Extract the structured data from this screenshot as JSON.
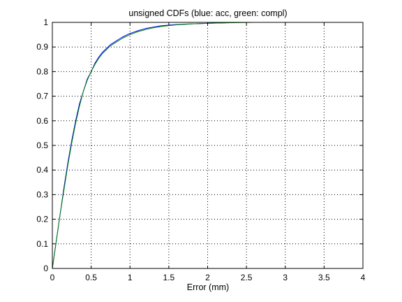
{
  "chart_data": {
    "type": "line",
    "title": "unsigned CDFs (blue: acc, green: compl)",
    "xlabel": "Error (mm)",
    "ylabel": "",
    "xlim": [
      0,
      4
    ],
    "ylim": [
      0,
      1
    ],
    "xticks": [
      "0",
      "0.5",
      "1",
      "1.5",
      "2",
      "2.5",
      "3",
      "3.5",
      "4"
    ],
    "yticks": [
      "0",
      "0.1",
      "0.2",
      "0.3",
      "0.4",
      "0.5",
      "0.6",
      "0.7",
      "0.8",
      "0.9",
      "1"
    ],
    "grid": true,
    "legend": "none",
    "colors": {
      "acc": "#0000ff",
      "compl": "#008000",
      "grid": "#000000",
      "axes": "#000000"
    },
    "series": [
      {
        "color": "#0000ff",
        "x": [
          0,
          0.05,
          0.1,
          0.15,
          0.2,
          0.25,
          0.3,
          0.35,
          0.4,
          0.45,
          0.5,
          0.55,
          0.6,
          0.65,
          0.7,
          0.75,
          0.8,
          0.9,
          1.0,
          1.1,
          1.2,
          1.3,
          1.4,
          1.5,
          1.6,
          1.7,
          1.8,
          1.9,
          2.0,
          2.1,
          2.2,
          2.3,
          2.38
        ],
        "y": [
          0,
          0.11,
          0.22,
          0.33,
          0.43,
          0.52,
          0.6,
          0.67,
          0.72,
          0.77,
          0.8,
          0.835,
          0.86,
          0.88,
          0.895,
          0.91,
          0.92,
          0.94,
          0.955,
          0.966,
          0.975,
          0.981,
          0.986,
          0.989,
          0.991,
          0.993,
          0.994,
          0.995,
          0.996,
          0.997,
          0.998,
          0.999,
          1.0
        ]
      },
      {
        "color": "#008000",
        "x": [
          0,
          0.05,
          0.1,
          0.15,
          0.2,
          0.25,
          0.3,
          0.35,
          0.4,
          0.45,
          0.5,
          0.55,
          0.6,
          0.65,
          0.7,
          0.75,
          0.8,
          0.9,
          1.0,
          1.1,
          1.2,
          1.3,
          1.4,
          1.5,
          1.6,
          1.7,
          1.8,
          1.9,
          2.0,
          2.2,
          2.4,
          2.6,
          3.0,
          4.0
        ],
        "y": [
          0,
          0.11,
          0.22,
          0.32,
          0.42,
          0.51,
          0.59,
          0.66,
          0.72,
          0.765,
          0.8,
          0.83,
          0.855,
          0.875,
          0.89,
          0.905,
          0.915,
          0.935,
          0.95,
          0.962,
          0.971,
          0.978,
          0.983,
          0.987,
          0.99,
          0.992,
          0.994,
          0.995,
          0.996,
          0.998,
          0.999,
          1.0,
          1.0,
          1.0
        ]
      }
    ]
  }
}
